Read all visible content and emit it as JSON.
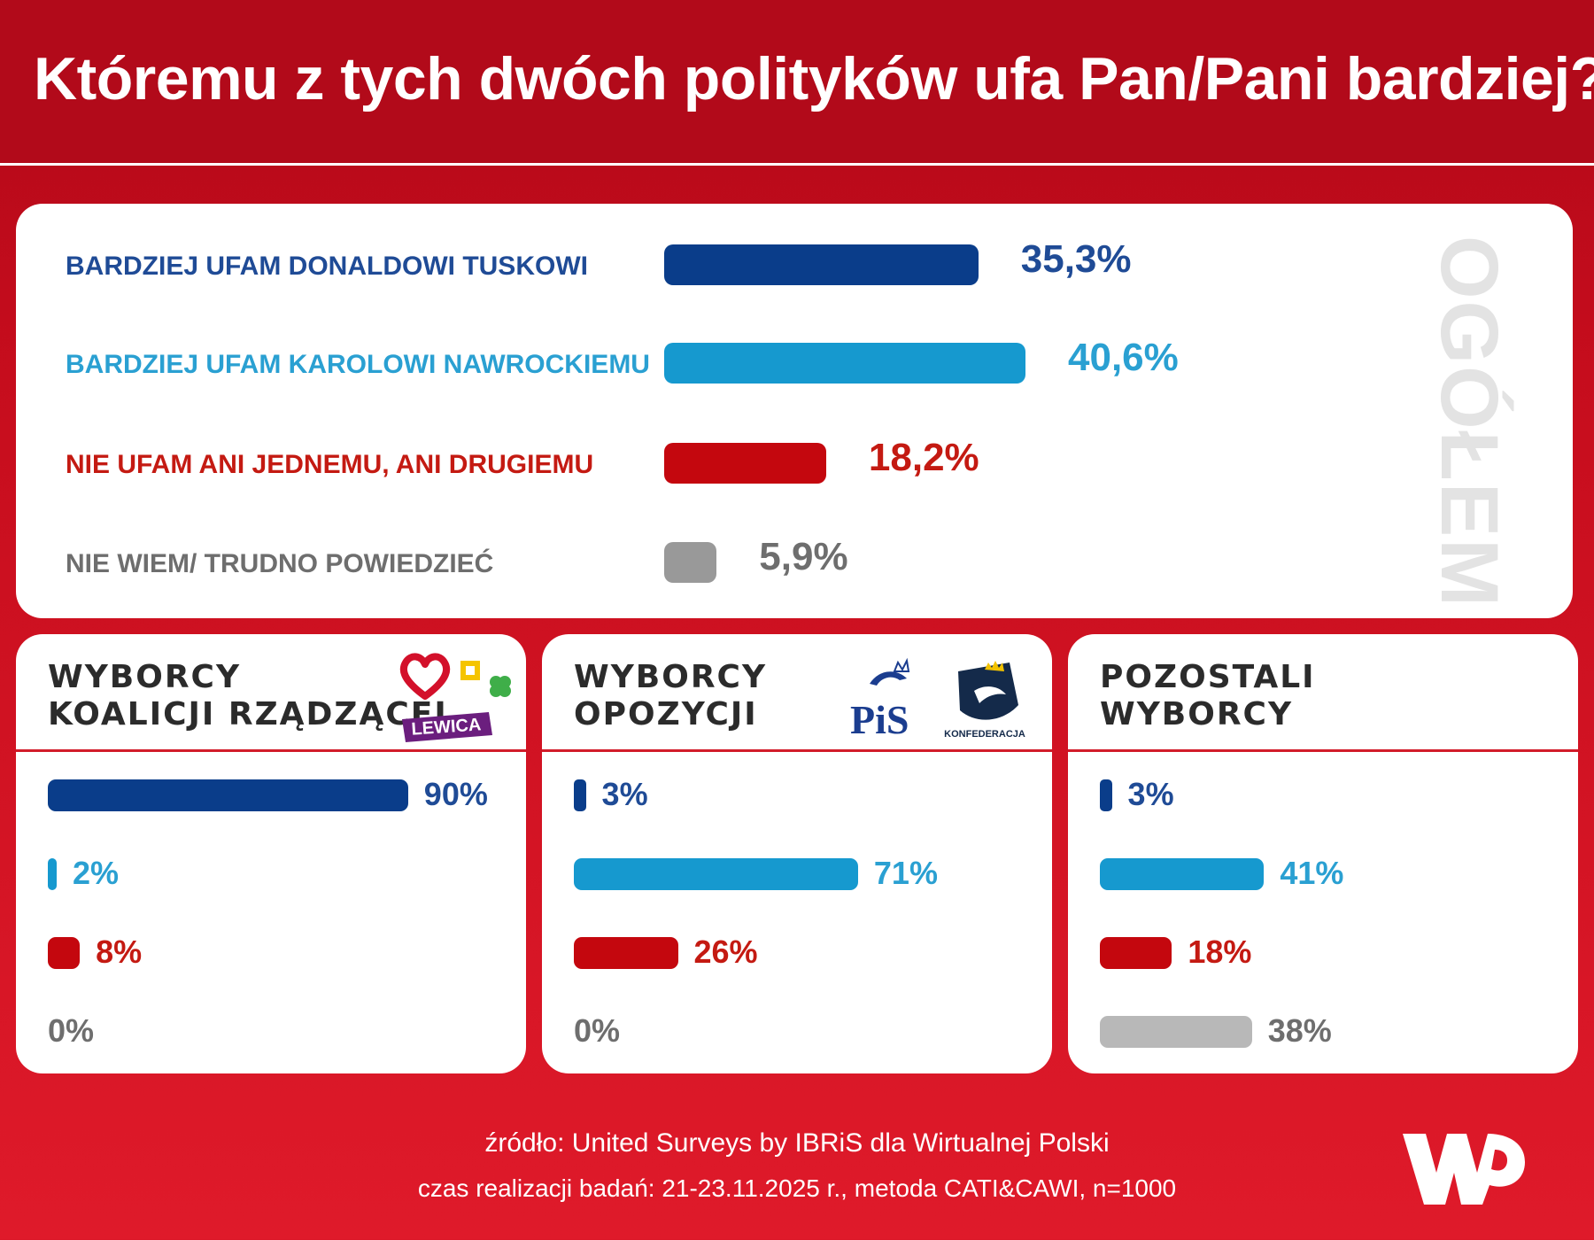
{
  "title": "Któremu z tych dwóch polityków ufa Pan/Pani bardziej?",
  "colors": {
    "tusk": "#0a3d8a",
    "nawrocki": "#1699cf",
    "neither": "#c4070e",
    "dontknow": "#999999",
    "dontknow_light": "#b8b8b8",
    "label_tusk": "#1f4b96",
    "label_nawrocki": "#2aa0d2",
    "label_neither": "#c41a12",
    "label_dontknow": "#6e6e6e"
  },
  "chart_data": [
    {
      "type": "bar",
      "orientation": "horizontal",
      "title": "",
      "panel_label": "OGÓŁEM",
      "categories": [
        "BARDZIEJ UFAM DONALDOWI TUSKOWI",
        "BARDZIEJ UFAM KAROLOWI NAWROCKIEMU",
        "NIE UFAM ANI JEDNEMU, ANI DRUGIEMU",
        "NIE WIEM/ TRUDNO POWIEDZIEĆ"
      ],
      "values": [
        35.3,
        40.6,
        18.2,
        5.9
      ],
      "value_labels": [
        "35,3%",
        "40,6%",
        "18,2%",
        "5,9%"
      ],
      "xlim": [
        0,
        100
      ]
    },
    {
      "type": "bar",
      "orientation": "horizontal",
      "title": "WYBORCY KOALICJI RZĄDZĄCEJ",
      "title_lines": [
        "WYBORCY",
        "KOALICJI RZĄDZĄCEJ"
      ],
      "logo_text": "LEWICA",
      "values": [
        90,
        2,
        8,
        0
      ],
      "value_labels": [
        "90%",
        "2%",
        "8%",
        "0%"
      ],
      "xlim": [
        0,
        100
      ]
    },
    {
      "type": "bar",
      "orientation": "horizontal",
      "title": "WYBORCY OPOZYCJI",
      "title_lines": [
        "WYBORCY",
        "OPOZYCJI"
      ],
      "logo_text_1": "PiS",
      "logo_text_2": "KONFEDERACJA",
      "values": [
        3,
        71,
        26,
        0
      ],
      "value_labels": [
        "3%",
        "71%",
        "26%",
        "0%"
      ],
      "xlim": [
        0,
        100
      ]
    },
    {
      "type": "bar",
      "orientation": "horizontal",
      "title": "POZOSTALI WYBORCY",
      "title_lines": [
        "POZOSTALI",
        "WYBORCY"
      ],
      "values": [
        3,
        41,
        18,
        38
      ],
      "value_labels": [
        "3%",
        "41%",
        "18%",
        "38%"
      ],
      "xlim": [
        0,
        100
      ]
    }
  ],
  "footer": {
    "source": "źródło: United Surveys by IBRiS dla Wirtualnej Polski",
    "time": "czas realizacji badań: 21-23.11.2025 r., metoda CATI&CAWI, n=1000"
  }
}
